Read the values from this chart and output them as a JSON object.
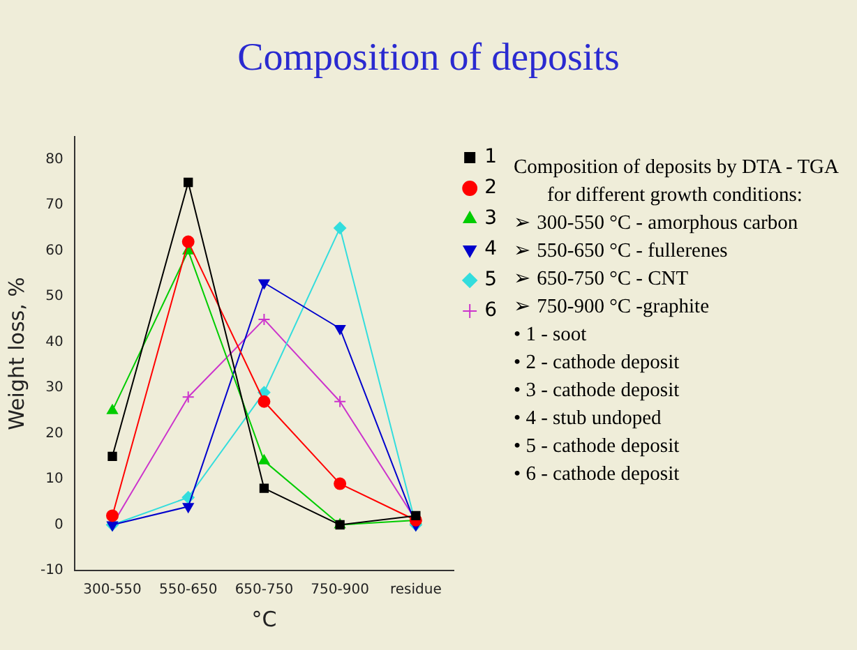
{
  "chart_data": {
    "type": "line",
    "title": "Composition of deposits",
    "xlabel": "°C",
    "ylabel": "Weight loss, %",
    "categories": [
      "300-550",
      "550-650",
      "650-750",
      "750-900",
      "residue"
    ],
    "series": [
      {
        "name": "1",
        "color": "#000000",
        "marker": "square",
        "values": [
          15,
          75,
          8,
          0,
          2
        ]
      },
      {
        "name": "2",
        "color": "#ff0000",
        "marker": "circle",
        "values": [
          2,
          62,
          27,
          9,
          1
        ]
      },
      {
        "name": "3",
        "color": "#00cc00",
        "marker": "triangle",
        "values": [
          25,
          60,
          14,
          0,
          1
        ]
      },
      {
        "name": "4",
        "color": "#0000cc",
        "marker": "triangle-down",
        "values": [
          0,
          4,
          53,
          43,
          0
        ]
      },
      {
        "name": "5",
        "color": "#33dddd",
        "marker": "diamond",
        "values": [
          0,
          6,
          29,
          65,
          0
        ]
      },
      {
        "name": "6",
        "color": "#cc33cc",
        "marker": "cross",
        "values": [
          0,
          28,
          45,
          27,
          1
        ]
      }
    ],
    "ylim": [
      -10,
      85
    ],
    "yticks": [
      -10,
      0,
      10,
      20,
      30,
      40,
      50,
      60,
      70,
      80
    ],
    "grid": false,
    "legend": "top right",
    "line_style": "solid",
    "annotations": [
      "Composition of deposits by DTA - TGA for different growth conditions:",
      "➢ 300-550 °C - amorphous carbon",
      "➢ 550-650 °C - fullerenes",
      "➢ 650-750 °C - CNT",
      "➢ 750-900 °C -graphite",
      "• 1 - soot",
      "• 2 - cathode deposit",
      "• 3 - cathode deposit",
      "• 4 - stub undoped",
      "• 5 - cathode deposit",
      "• 6 - cathode deposit"
    ]
  }
}
